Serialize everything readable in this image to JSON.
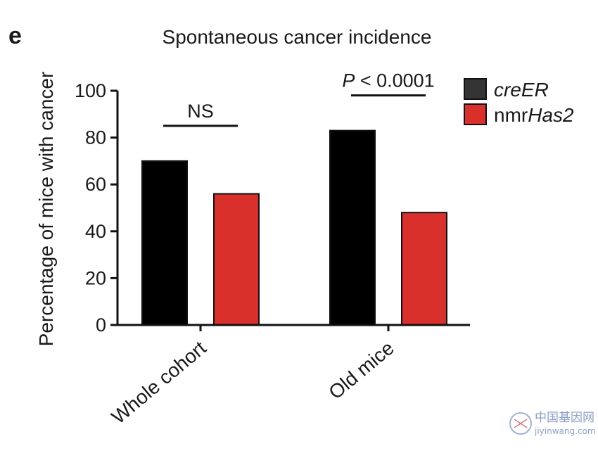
{
  "panel_label": "e",
  "chart_data": {
    "type": "bar",
    "title": "Spontaneous cancer incidence",
    "xlabel": "",
    "ylabel": "Percentage of mice with cancer",
    "ylim": [
      0,
      100
    ],
    "yticks": [
      0,
      20,
      40,
      60,
      80,
      100
    ],
    "categories": [
      "Whole cohort",
      "Old mice"
    ],
    "series": [
      {
        "name": "creER",
        "color": "#000000",
        "values": [
          70,
          83
        ]
      },
      {
        "name": "nmrHas2",
        "color": "#d9302c",
        "values": [
          56,
          48
        ]
      }
    ],
    "legend": {
      "position": "top-right",
      "entries": [
        {
          "prefix": "",
          "italic": "creER",
          "color": "#333333"
        },
        {
          "prefix": "nmr",
          "italic": "Has2",
          "color": "#d9302c"
        }
      ]
    },
    "annotations": [
      {
        "category": "Whole cohort",
        "italic": "",
        "text": "NS"
      },
      {
        "category": "Old mice",
        "italic": "P",
        "text": " < 0.0001"
      }
    ]
  },
  "watermark": {
    "text_cn": "中国基因网",
    "text_en": "jiyinwang.com",
    "icon": "dna-circle-icon",
    "color": "#8aa0c8"
  }
}
